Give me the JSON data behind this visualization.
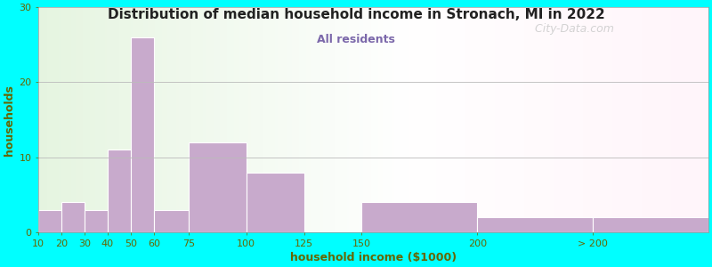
{
  "title": "Distribution of median household income in Stronach, MI in 2022",
  "subtitle": "All residents",
  "xlabel": "household income ($1000)",
  "ylabel": "households",
  "background_color": "#00FFFF",
  "bar_color": "#C8AACC",
  "title_color": "#222222",
  "subtitle_color": "#7B68AA",
  "axis_label_color": "#666600",
  "tick_label_color": "#666600",
  "watermark": "  City-Data.com",
  "ylim": [
    0,
    30
  ],
  "yticks": [
    0,
    10,
    20,
    30
  ],
  "bar_heights": [
    3,
    4,
    3,
    11,
    26,
    3,
    12,
    8,
    0,
    4,
    2,
    2
  ],
  "bar_lefts": [
    10,
    20,
    30,
    40,
    50,
    60,
    75,
    100,
    125,
    150,
    200,
    250
  ],
  "bar_widths": [
    10,
    10,
    10,
    10,
    10,
    15,
    25,
    25,
    25,
    50,
    50,
    50
  ],
  "xtick_positions": [
    10,
    20,
    30,
    40,
    50,
    60,
    75,
    100,
    125,
    150,
    200,
    250
  ],
  "xtick_labels": [
    "10",
    "20",
    "30",
    "40",
    "50",
    "60",
    "75",
    "100",
    "125",
    "150",
    "200",
    "> 200"
  ],
  "xlim": [
    10,
    300
  ]
}
